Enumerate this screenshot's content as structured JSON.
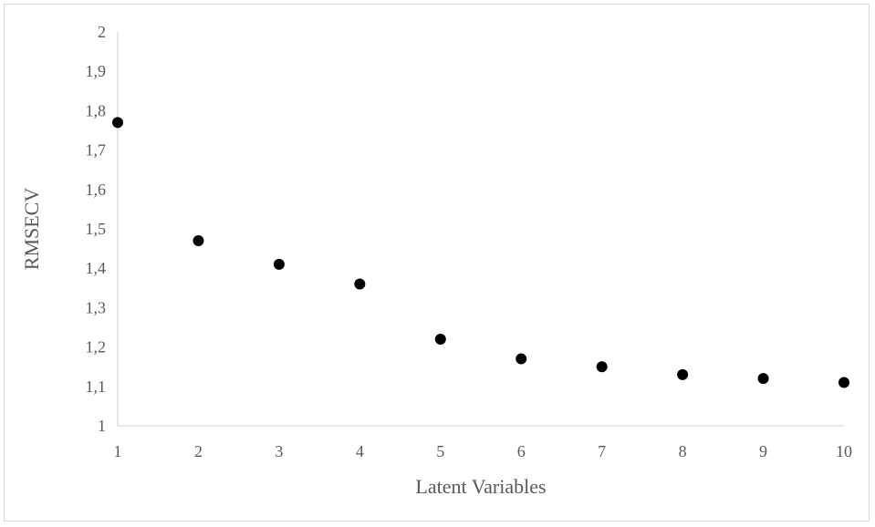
{
  "chart_data": {
    "type": "scatter",
    "title": "",
    "xlabel": "Latent Variables",
    "ylabel": "RMSECV",
    "x": [
      1,
      2,
      3,
      4,
      5,
      6,
      7,
      8,
      9,
      10
    ],
    "y": [
      1.77,
      1.47,
      1.41,
      1.36,
      1.22,
      1.17,
      1.15,
      1.13,
      1.12,
      1.11
    ],
    "xlim": [
      1,
      10
    ],
    "ylim": [
      1,
      2
    ],
    "x_ticks": [
      "1",
      "2",
      "3",
      "4",
      "5",
      "6",
      "7",
      "8",
      "9",
      "10"
    ],
    "y_ticks": [
      "1",
      "1,1",
      "1,2",
      "1,3",
      "1,4",
      "1,5",
      "1,6",
      "1,7",
      "1,8",
      "1,9",
      "2"
    ],
    "grid": false,
    "legend": "none",
    "colors": {
      "marker": "#000000",
      "axis": "#d9d9d9",
      "text": "#595959"
    }
  }
}
